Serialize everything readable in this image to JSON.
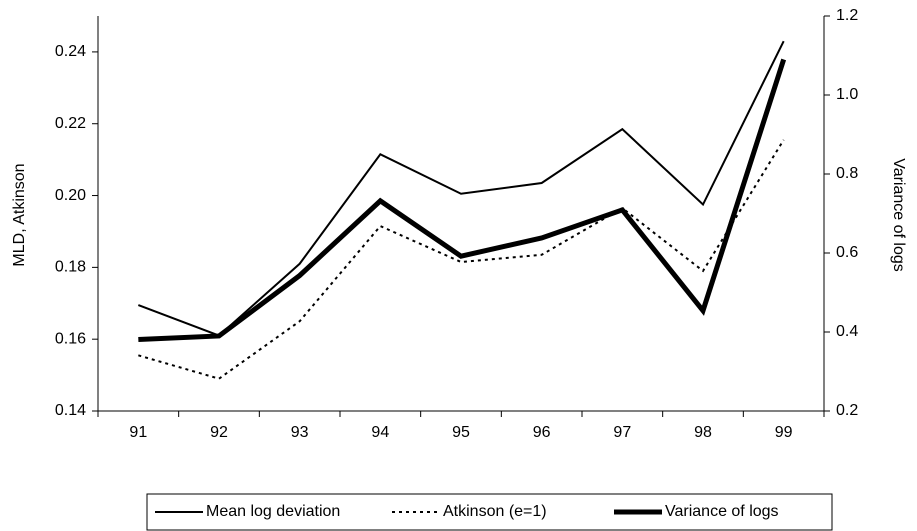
{
  "chart_data": {
    "type": "line",
    "categories": [
      "91",
      "92",
      "93",
      "94",
      "95",
      "96",
      "97",
      "98",
      "99"
    ],
    "y_label": "MLD, Atkinson",
    "y2_label": "Variance of logs",
    "ylim": [
      0.14,
      0.25
    ],
    "yticks": [
      {
        "value": 0.14,
        "label": "0.14"
      },
      {
        "value": 0.16,
        "label": "0.16"
      },
      {
        "value": 0.18,
        "label": "0.18"
      },
      {
        "value": 0.2,
        "label": "0.20"
      },
      {
        "value": 0.22,
        "label": "0.22"
      },
      {
        "value": 0.24,
        "label": "0.24"
      }
    ],
    "y2lim": [
      0.2,
      1.2
    ],
    "y2ticks": [
      0.2,
      0.4,
      0.6,
      0.8,
      {
        "value": 1.0,
        "label": "1.0"
      },
      1.2
    ],
    "legend": "bottom",
    "series": [
      {
        "name": "Mean log deviation",
        "color": "#000000",
        "line_style": "solid",
        "values": [
          0.1695,
          0.161,
          0.181,
          0.2115,
          0.2005,
          0.2035,
          0.2185,
          0.1975,
          0.243
        ]
      },
      {
        "name": "Atkinson (e=1)",
        "color": "#000000",
        "line_style": "dotted",
        "values": [
          0.1555,
          0.149,
          0.165,
          0.1915,
          0.1815,
          0.1835,
          0.1965,
          0.179,
          0.2155
        ]
      },
      {
        "name": "Variance of logs",
        "color": "#000000",
        "line_style": "thick",
        "axis": "y2",
        "values": [
          0.381,
          0.39,
          0.543,
          0.732,
          0.592,
          0.638,
          0.709,
          0.454,
          1.09
        ]
      }
    ]
  }
}
